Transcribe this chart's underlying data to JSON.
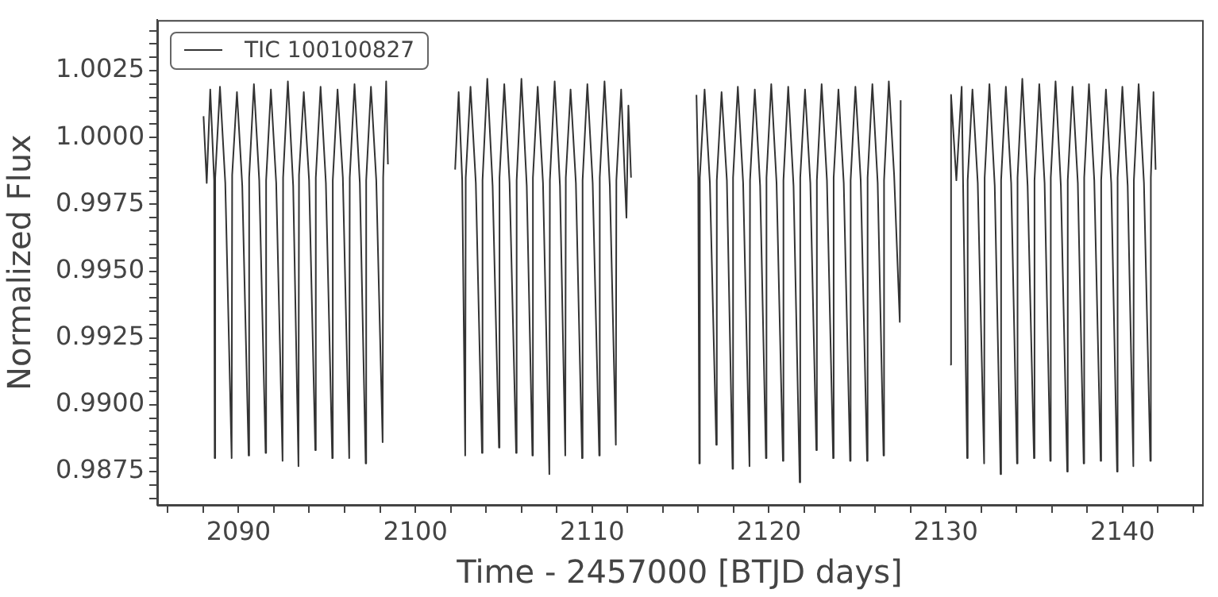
{
  "chart_data": {
    "type": "line",
    "xlabel": "Time - 2457000 [BTJD days]",
    "ylabel": "Normalized Flux",
    "legend": "top left",
    "grid": false,
    "marker": "none",
    "line_style": "solid",
    "xlim": [
      2085.4,
      2144.5
    ],
    "ylim": [
      0.98625,
      1.0044
    ],
    "xticks": [
      {
        "value": 2086,
        "label": null
      },
      {
        "value": 2088,
        "label": null
      },
      2090,
      {
        "value": 2092,
        "label": null
      },
      {
        "value": 2094,
        "label": null
      },
      {
        "value": 2096,
        "label": null
      },
      {
        "value": 2098,
        "label": null
      },
      2100,
      {
        "value": 2102,
        "label": null
      },
      {
        "value": 2104,
        "label": null
      },
      {
        "value": 2106,
        "label": null
      },
      {
        "value": 2108,
        "label": null
      },
      2110,
      {
        "value": 2112,
        "label": null
      },
      {
        "value": 2114,
        "label": null
      },
      {
        "value": 2116,
        "label": null
      },
      {
        "value": 2118,
        "label": null
      },
      2120,
      {
        "value": 2122,
        "label": null
      },
      {
        "value": 2124,
        "label": null
      },
      {
        "value": 2126,
        "label": null
      },
      {
        "value": 2128,
        "label": null
      },
      2130,
      {
        "value": 2132,
        "label": null
      },
      {
        "value": 2134,
        "label": null
      },
      {
        "value": 2136,
        "label": null
      },
      {
        "value": 2138,
        "label": null
      },
      2140,
      {
        "value": 2142,
        "label": null
      },
      {
        "value": 2144,
        "label": null
      }
    ],
    "yticks": [
      {
        "value": 0.9865,
        "label": null
      },
      {
        "value": 0.987,
        "label": null
      },
      0.9875,
      {
        "value": 0.988,
        "label": null
      },
      {
        "value": 0.9885,
        "label": null
      },
      {
        "value": 0.989,
        "label": null
      },
      {
        "value": 0.9895,
        "label": null
      },
      {
        "value": 0.99,
        "label": "0.9900"
      },
      {
        "value": 0.9905,
        "label": null
      },
      {
        "value": 0.991,
        "label": null
      },
      {
        "value": 0.9915,
        "label": null
      },
      {
        "value": 0.992,
        "label": null
      },
      0.9925,
      {
        "value": 0.993,
        "label": null
      },
      {
        "value": 0.9935,
        "label": null
      },
      {
        "value": 0.994,
        "label": null
      },
      {
        "value": 0.9945,
        "label": null
      },
      {
        "value": 0.995,
        "label": "0.9950"
      },
      {
        "value": 0.9955,
        "label": null
      },
      {
        "value": 0.996,
        "label": null
      },
      {
        "value": 0.9965,
        "label": null
      },
      {
        "value": 0.997,
        "label": null
      },
      0.9975,
      {
        "value": 0.998,
        "label": null
      },
      {
        "value": 0.9985,
        "label": null
      },
      {
        "value": 0.999,
        "label": null
      },
      {
        "value": 0.9995,
        "label": null
      },
      {
        "value": 1,
        "label": "1.0000"
      },
      {
        "value": 1.0005,
        "label": null
      },
      {
        "value": 1.001,
        "label": null
      },
      {
        "value": 1.0015,
        "label": null
      },
      {
        "value": 1.002,
        "label": null
      },
      1.0025,
      {
        "value": 1.003,
        "label": null
      },
      {
        "value": 1.0035,
        "label": null
      },
      {
        "value": 1.004,
        "label": null
      }
    ],
    "series": [
      {
        "name": "TIC 100100827",
        "color": "#333333",
        "x": [
          2088.02,
          2088.2,
          2088.4,
          2088.62,
          2088.65,
          2088.68,
          2088.95,
          2089.25,
          2089.61,
          2089.64,
          2089.91,
          2090.21,
          2090.57,
          2090.6,
          2090.87,
          2091.17,
          2091.53,
          2091.56,
          2091.83,
          2092.13,
          2092.49,
          2092.52,
          2092.79,
          2093.09,
          2093.39,
          2093.42,
          2093.69,
          2093.99,
          2094.34,
          2094.37,
          2094.64,
          2094.94,
          2095.3,
          2095.33,
          2095.6,
          2095.9,
          2096.26,
          2096.29,
          2096.56,
          2096.86,
          2097.19,
          2097.22,
          2097.49,
          2097.79,
          2098.15,
          2098.18,
          2098.35,
          2098.45,
          2100,
          2102.25,
          2102.45,
          2102.65,
          2102.82,
          2102.85,
          2103.12,
          2103.42,
          2103.77,
          2103.8,
          2104.07,
          2104.37,
          2104.73,
          2104.76,
          2105.03,
          2105.33,
          2105.7,
          2105.73,
          2106.0,
          2106.3,
          2106.62,
          2106.65,
          2106.92,
          2107.22,
          2107.58,
          2107.61,
          2107.88,
          2108.18,
          2108.48,
          2108.51,
          2108.78,
          2109.08,
          2109.43,
          2109.46,
          2109.73,
          2110.03,
          2110.4,
          2110.43,
          2110.7,
          2111.0,
          2111.34,
          2111.37,
          2111.64,
          2111.94,
          2112.05,
          2112.2,
          2114,
          2115.9,
          2116.0,
          2116.06,
          2116.09,
          2116.36,
          2116.66,
          2117.02,
          2117.05,
          2117.32,
          2117.62,
          2117.94,
          2117.97,
          2118.24,
          2118.54,
          2118.9,
          2118.93,
          2119.2,
          2119.5,
          2119.83,
          2119.86,
          2120.13,
          2120.43,
          2120.79,
          2120.82,
          2121.09,
          2121.39,
          2121.74,
          2121.77,
          2122.04,
          2122.34,
          2122.68,
          2122.71,
          2122.98,
          2123.28,
          2123.63,
          2123.66,
          2123.93,
          2124.23,
          2124.59,
          2124.62,
          2124.89,
          2125.19,
          2125.55,
          2125.58,
          2125.85,
          2126.15,
          2126.48,
          2126.51,
          2126.78,
          2127.08,
          2127.4,
          2127.45,
          2129,
          2130.25,
          2130.3,
          2130.6,
          2130.9,
          2131.21,
          2131.24,
          2131.51,
          2131.81,
          2132.17,
          2132.2,
          2132.47,
          2132.77,
          2133.1,
          2133.13,
          2133.4,
          2133.7,
          2134.03,
          2134.06,
          2134.33,
          2134.63,
          2134.99,
          2135.02,
          2135.29,
          2135.59,
          2135.91,
          2135.94,
          2136.21,
          2136.51,
          2136.87,
          2136.9,
          2137.17,
          2137.47,
          2137.8,
          2137.83,
          2138.1,
          2138.4,
          2138.76,
          2138.79,
          2139.06,
          2139.36,
          2139.69,
          2139.72,
          2139.99,
          2140.29,
          2140.61,
          2140.64,
          2140.91,
          2141.21,
          2141.57,
          2141.6,
          2141.75,
          2141.87
        ],
        "values": [
          1.0008,
          0.9983,
          1.0018,
          0.9984,
          0.988,
          0.9985,
          1.0019,
          0.9983,
          0.988,
          0.9986,
          1.0017,
          0.9982,
          0.9881,
          0.9985,
          1.002,
          0.9984,
          0.9882,
          0.9984,
          1.0018,
          0.9983,
          0.9879,
          0.9985,
          1.0021,
          0.9982,
          0.9877,
          0.9986,
          1.0017,
          0.9984,
          0.9883,
          0.9985,
          1.0019,
          0.9983,
          0.988,
          0.9984,
          1.0018,
          0.9985,
          0.988,
          0.9985,
          1.002,
          0.9983,
          0.9878,
          0.9984,
          1.0019,
          0.9984,
          0.9886,
          0.9985,
          1.0021,
          0.999,
          null,
          0.9988,
          1.0017,
          0.9984,
          0.9881,
          0.9985,
          1.0019,
          0.9983,
          0.9882,
          0.9984,
          1.0022,
          0.9982,
          0.9884,
          0.9985,
          1.002,
          0.9983,
          0.9882,
          0.9984,
          1.0022,
          0.9982,
          0.9881,
          0.9985,
          1.0019,
          0.9983,
          0.9874,
          0.9984,
          1.0021,
          0.9982,
          0.9881,
          0.9985,
          1.0018,
          0.9983,
          0.988,
          0.9984,
          1.002,
          0.9983,
          0.9881,
          0.9985,
          1.0021,
          0.9982,
          0.9885,
          0.9984,
          1.0018,
          0.997,
          1.0012,
          0.9985,
          null,
          1.0016,
          0.9985,
          0.9878,
          0.9985,
          1.0018,
          0.9983,
          0.9885,
          0.9984,
          1.0017,
          0.9984,
          0.9876,
          0.9985,
          1.0019,
          0.9983,
          0.9877,
          0.9984,
          1.0018,
          0.9982,
          0.988,
          0.9985,
          1.002,
          0.9983,
          0.9879,
          0.9984,
          1.0019,
          0.9982,
          0.9871,
          0.9985,
          1.0018,
          0.9983,
          0.9883,
          0.9984,
          1.002,
          0.9984,
          0.988,
          0.9985,
          1.0018,
          0.9983,
          0.9879,
          0.9984,
          1.0019,
          0.9984,
          0.9879,
          0.9985,
          1.002,
          0.9983,
          0.9881,
          0.9984,
          1.0021,
          0.9986,
          0.9931,
          1.0014,
          null,
          0.9915,
          1.0016,
          0.9984,
          1.0019,
          0.988,
          0.9984,
          1.0018,
          0.9983,
          0.9878,
          0.9985,
          1.002,
          0.9982,
          0.9874,
          0.9984,
          1.0019,
          0.9983,
          0.9878,
          0.9985,
          1.0022,
          0.9982,
          0.988,
          0.9984,
          1.002,
          0.9983,
          0.9879,
          0.9985,
          1.0021,
          0.9982,
          0.9875,
          0.9984,
          1.0019,
          0.9983,
          0.9878,
          0.9985,
          1.002,
          0.9984,
          0.9879,
          0.9984,
          1.0018,
          0.9983,
          0.9875,
          0.9985,
          1.0019,
          0.9982,
          0.9877,
          0.9984,
          1.002,
          0.9983,
          0.9879,
          0.9985,
          1.0017,
          0.9988
        ]
      }
    ]
  }
}
